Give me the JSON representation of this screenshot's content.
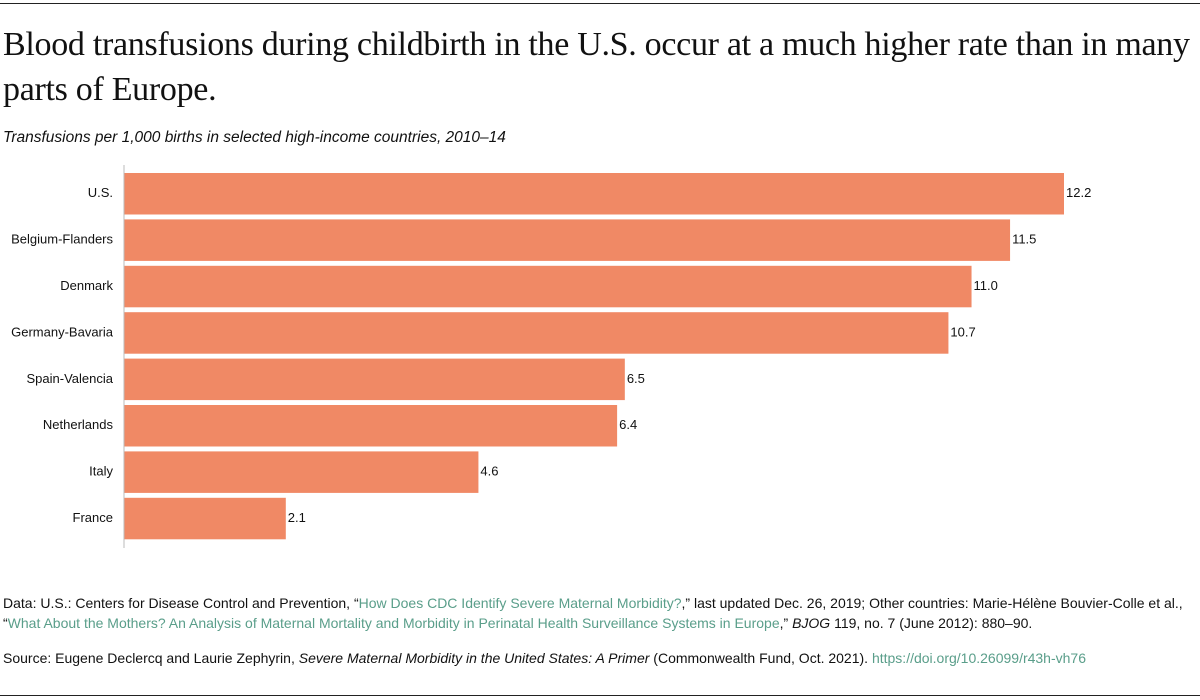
{
  "chart_data": {
    "type": "hbar",
    "title": "Blood transfusions during childbirth in the U.S. occur at a much higher rate than in many parts of Europe.",
    "subtitle": "Transfusions per 1,000 births in selected high-income countries, 2010–14",
    "categories": [
      "U.S.",
      "Belgium-Flanders",
      "Denmark",
      "Germany-Bavaria",
      "Spain-Valencia",
      "Netherlands",
      "Italy",
      "France"
    ],
    "values": [
      12.2,
      11.5,
      11.0,
      10.7,
      6.5,
      6.4,
      4.6,
      2.1
    ],
    "value_labels": [
      "12.2",
      "11.5",
      "11.0",
      "10.7",
      "6.5",
      "6.4",
      "4.6",
      "2.1"
    ],
    "color": "#f08965",
    "data_note": [
      "Data: U.S.: Centers for Disease Control and Prevention, “",
      "How Does CDC Identify Severe Maternal Morbidity?",
      ",” last updated Dec. 26, 2019; Other countries: Marie-Hélène Bouvier-Colle et al., “",
      "What About the Mothers? An Analysis of Maternal Mortality and Morbidity in Perinatal Health Surveillance Systems in Europe",
      ",” ",
      "BJOG",
      " 119, no. 7 (June 2012): 880–90."
    ],
    "source_note": [
      "Source: Eugene Declercq and Laurie Zephyrin, ",
      "Severe Maternal Morbidity in the United States: A Primer",
      " (Commonwealth Fund, Oct. 2021). ",
      "https://doi.org/10.26099/r43h-vh76"
    ]
  }
}
